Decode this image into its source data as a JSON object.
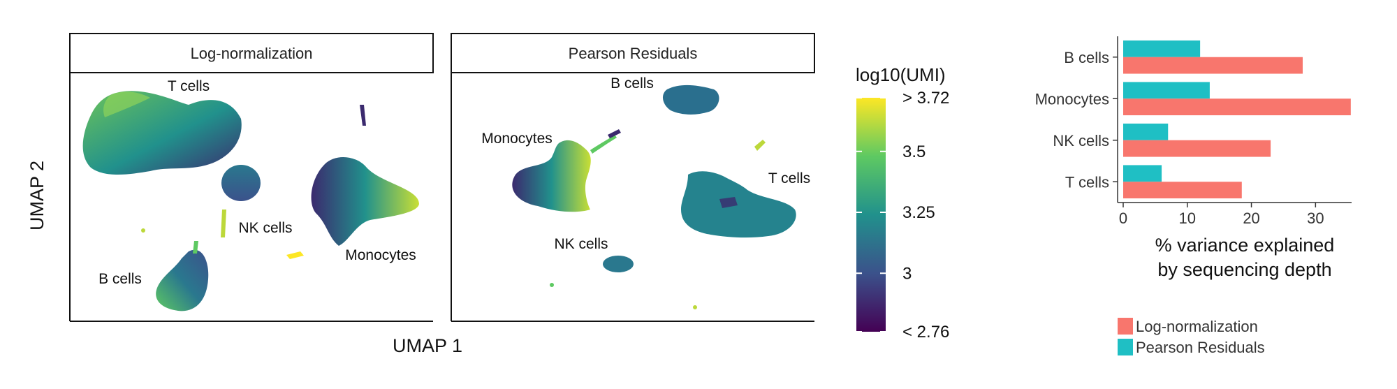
{
  "umap": {
    "xlabel": "UMAP 1",
    "ylabel": "UMAP 2",
    "panels": [
      {
        "title": "Log-normalization",
        "labels": [
          "T cells",
          "NK cells",
          "Monocytes",
          "B cells"
        ]
      },
      {
        "title": "Pearson Residuals",
        "labels": [
          "B cells",
          "Monocytes",
          "T cells",
          "NK cells"
        ]
      }
    ]
  },
  "colorbar": {
    "title": "log10(UMI)",
    "ticks": [
      "> 3.72",
      "3.5",
      "3.25",
      "3",
      "< 2.76"
    ],
    "tick_values": [
      3.72,
      3.5,
      3.25,
      3.0,
      2.76
    ],
    "range": [
      2.76,
      3.72
    ],
    "colors": [
      "#440154",
      "#3b528b",
      "#21918c",
      "#5ec962",
      "#fde725"
    ]
  },
  "chart_data": {
    "type": "bar",
    "orientation": "horizontal",
    "categories": [
      "B cells",
      "Monocytes",
      "NK cells",
      "T cells"
    ],
    "series": [
      {
        "name": "Pearson Residuals",
        "color": "#1fbfc4",
        "values": [
          12,
          13.5,
          7,
          6
        ]
      },
      {
        "name": "Log-normalization",
        "color": "#f8766d",
        "values": [
          28,
          35.5,
          23,
          18.5
        ]
      }
    ],
    "xticks": [
      0,
      10,
      20,
      30
    ],
    "xlim": [
      0,
      36.5
    ],
    "xlabel_lines": [
      "% variance explained",
      "by sequencing depth"
    ],
    "legend": [
      {
        "name": "Log-normalization",
        "color": "#f8766d"
      },
      {
        "name": "Pearson Residuals",
        "color": "#1fbfc4"
      }
    ],
    "legend_position": "bottom",
    "grid": false
  }
}
